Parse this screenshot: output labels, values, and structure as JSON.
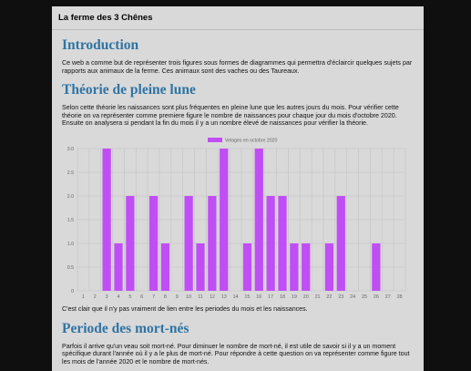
{
  "site": {
    "title": "La ferme des 3 Chênes"
  },
  "sections": [
    {
      "heading": "Introduction",
      "paragraph": "Ce web a comme but de représenter trois figures sous formes de diagrammes qui permettra d'éclaircir quelques sujets par rapports aux animaux de la ferme. Ces animaux sont des vaches ou des Taureaux."
    },
    {
      "heading": "Théorie de pleine lune",
      "paragraph": "Selon cette théorie les naissances sont plus fréquentes en pleine lune que les autres jours du mois. Pour vérifier cette théorie on va représenter comme premiere figure le nombre de naissances pour chaque jour du mois d'octobre 2020. Ensuite on analysera si pendant la fin du mois il y a un nombre élevé de naissances pour vérifier la théorie.",
      "conclusion": "C'est clair que il n'y pas vraiment de lien entre les periodes du mois et les naissances."
    },
    {
      "heading": "Periode des mort-nés",
      "paragraph": "Parfois il arrive qu'un veau soit mort-né. Pour diminuer le nombre de mort-né, il est utile de savoir si il y a un moment spécifique durant l'année où il y a le plus de mort-né. Pour répondre à cette question on va représenter comme figure tout les mois de l'année 2020 et le nombre de mort-nés."
    }
  ],
  "chart_data": {
    "type": "bar",
    "categories": [
      "1",
      "2",
      "3",
      "4",
      "5",
      "6",
      "7",
      "8",
      "9",
      "10",
      "11",
      "12",
      "13",
      "14",
      "15",
      "16",
      "17",
      "18",
      "19",
      "20",
      "21",
      "22",
      "23",
      "24",
      "25",
      "26",
      "27",
      "28"
    ],
    "series": [
      {
        "name": "Velages en octobre 2020",
        "values": [
          0,
          0,
          3,
          1,
          2,
          0,
          2,
          1,
          0,
          2,
          1,
          2,
          3,
          0,
          1,
          3,
          2,
          2,
          1,
          1,
          0,
          1,
          2,
          0,
          0,
          1,
          0,
          0
        ]
      }
    ],
    "ylim": [
      0,
      3
    ],
    "yticks": [
      "0",
      "0.5",
      "1.0",
      "1.5",
      "2.0",
      "2.5",
      "3.0"
    ],
    "grid": true,
    "legend": "top-center",
    "colors": {
      "bar": "#c04ef5"
    }
  }
}
